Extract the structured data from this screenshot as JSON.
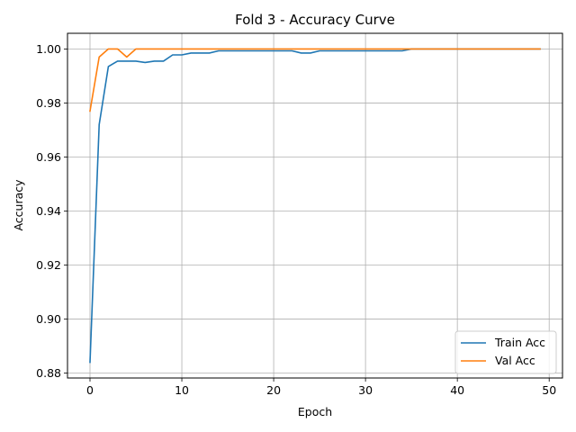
{
  "chart_data": {
    "type": "line",
    "title": "Fold 3 - Accuracy Curve",
    "xlabel": "Epoch",
    "ylabel": "Accuracy",
    "xlim": [
      -2.45,
      51.45
    ],
    "ylim": [
      0.8782,
      1.0058
    ],
    "xticks": [
      0,
      10,
      20,
      30,
      40,
      50
    ],
    "yticks": [
      0.88,
      0.9,
      0.92,
      0.94,
      0.96,
      0.98,
      1.0
    ],
    "grid": true,
    "legend": "lower-right",
    "series": [
      {
        "name": "Train Acc",
        "color": "#1f77b4",
        "x": [
          0,
          1,
          2,
          3,
          4,
          5,
          6,
          7,
          8,
          9,
          10,
          11,
          12,
          13,
          14,
          15,
          16,
          17,
          18,
          19,
          20,
          21,
          22,
          23,
          24,
          25,
          26,
          27,
          28,
          29,
          30,
          31,
          32,
          33,
          34,
          35,
          36,
          37,
          38,
          39,
          40,
          41,
          42,
          43,
          44,
          45,
          46,
          47,
          48,
          49
        ],
        "values": [
          0.884,
          0.972,
          0.9935,
          0.9955,
          0.9955,
          0.9955,
          0.995,
          0.9955,
          0.9955,
          0.9978,
          0.9978,
          0.9985,
          0.9985,
          0.9985,
          0.9993,
          0.9993,
          0.9993,
          0.9993,
          0.9993,
          0.9993,
          0.9993,
          0.9993,
          0.9993,
          0.9985,
          0.9985,
          0.9993,
          0.9993,
          0.9993,
          0.9993,
          0.9993,
          0.9993,
          0.9993,
          0.9993,
          0.9993,
          0.9993,
          1.0,
          1.0,
          1.0,
          1.0,
          1.0,
          1.0,
          1.0,
          1.0,
          1.0,
          1.0,
          1.0,
          1.0,
          1.0,
          1.0,
          1.0
        ]
      },
      {
        "name": "Val Acc",
        "color": "#ff7f0e",
        "x": [
          0,
          1,
          2,
          3,
          4,
          5,
          6,
          7,
          8,
          9,
          10,
          11,
          12,
          13,
          14,
          15,
          16,
          17,
          18,
          19,
          20,
          21,
          22,
          23,
          24,
          25,
          26,
          27,
          28,
          29,
          30,
          31,
          32,
          33,
          34,
          35,
          36,
          37,
          38,
          39,
          40,
          41,
          42,
          43,
          44,
          45,
          46,
          47,
          48,
          49
        ],
        "values": [
          0.977,
          0.997,
          1.0,
          1.0,
          0.997,
          1.0,
          1.0,
          1.0,
          1.0,
          1.0,
          1.0,
          1.0,
          1.0,
          1.0,
          1.0,
          1.0,
          1.0,
          1.0,
          1.0,
          1.0,
          1.0,
          1.0,
          1.0,
          1.0,
          1.0,
          1.0,
          1.0,
          1.0,
          1.0,
          1.0,
          1.0,
          1.0,
          1.0,
          1.0,
          1.0,
          1.0,
          1.0,
          1.0,
          1.0,
          1.0,
          1.0,
          1.0,
          1.0,
          1.0,
          1.0,
          1.0,
          1.0,
          1.0,
          1.0,
          1.0
        ]
      }
    ]
  }
}
